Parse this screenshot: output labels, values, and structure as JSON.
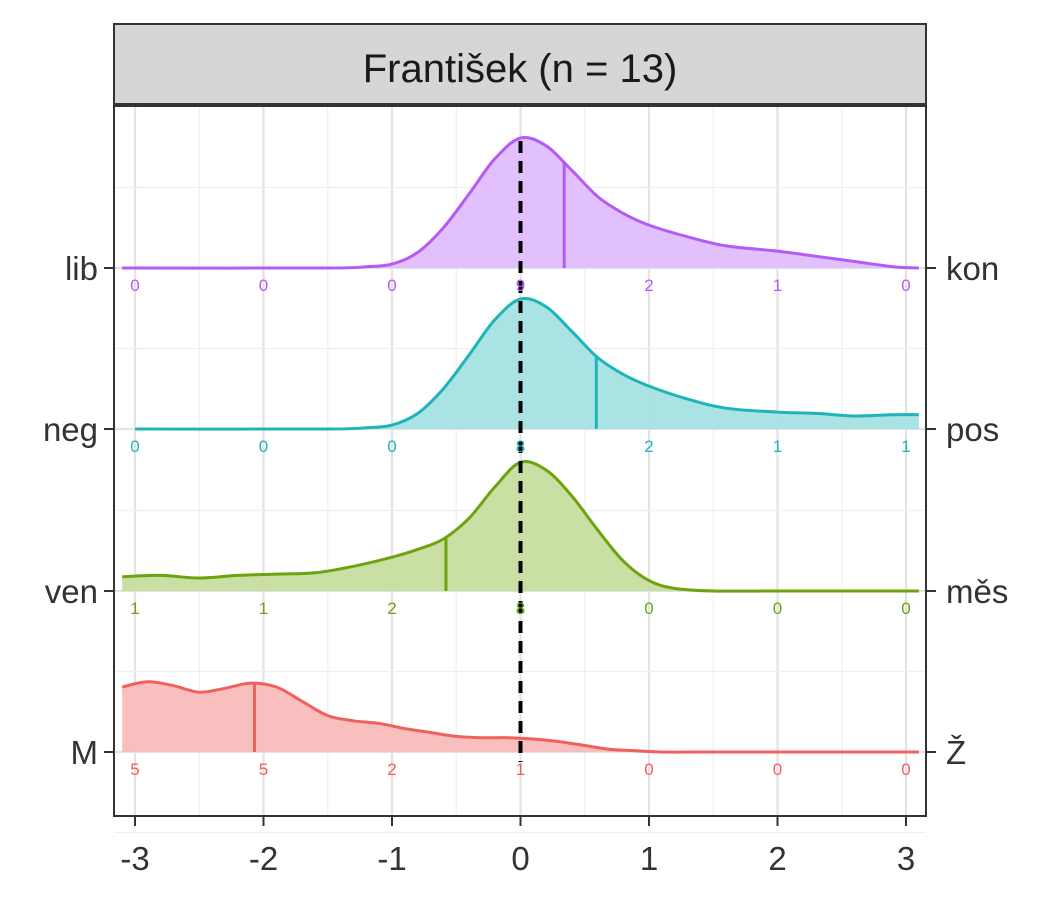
{
  "chart_data": {
    "type": "ridgeline",
    "title": "František (n = 13)",
    "x_ticks": [
      -3,
      -2,
      -1,
      0,
      1,
      2,
      3
    ],
    "xlim": [
      -3.1,
      3.1
    ],
    "reference_line_x": 0,
    "count_positions": [
      -3,
      -2,
      -1,
      0,
      1,
      2,
      3
    ],
    "grid": true,
    "rows": [
      {
        "left_label": "lib",
        "right_label": "kon",
        "color": "#b35cf5",
        "fill": "#e0bcfd",
        "counts": [
          "0",
          "0",
          "0",
          "9",
          "2",
          "1",
          "0"
        ],
        "median": 0.34,
        "density_x": [
          -3.1,
          -1.5,
          -1.2,
          -1.0,
          -0.8,
          -0.6,
          -0.4,
          -0.2,
          0.0,
          0.2,
          0.4,
          0.6,
          0.8,
          1.0,
          1.3,
          1.6,
          2.0,
          2.3,
          2.6,
          2.9,
          3.1
        ],
        "density_y": [
          0.0,
          0.0,
          0.01,
          0.03,
          0.12,
          0.31,
          0.57,
          0.84,
          1.0,
          0.94,
          0.75,
          0.55,
          0.42,
          0.33,
          0.24,
          0.17,
          0.13,
          0.09,
          0.05,
          0.01,
          0.0
        ]
      },
      {
        "left_label": "neg",
        "right_label": "pos",
        "color": "#1fb4b8",
        "fill": "#a5e2e3",
        "counts": [
          "0",
          "0",
          "0",
          "8",
          "2",
          "1",
          "1"
        ],
        "median": 0.59,
        "density_x": [
          -3.0,
          -1.5,
          -1.2,
          -1.0,
          -0.8,
          -0.6,
          -0.4,
          -0.2,
          0.0,
          0.2,
          0.4,
          0.6,
          0.8,
          1.0,
          1.3,
          1.6,
          2.0,
          2.3,
          2.6,
          2.9,
          3.1
        ],
        "density_y": [
          0.0,
          0.0,
          0.01,
          0.03,
          0.12,
          0.31,
          0.57,
          0.84,
          1.0,
          0.94,
          0.75,
          0.55,
          0.42,
          0.33,
          0.23,
          0.16,
          0.13,
          0.12,
          0.1,
          0.11,
          0.11
        ]
      },
      {
        "left_label": "ven",
        "right_label": "měs",
        "color": "#6ca30e",
        "fill": "#c7dd9f",
        "counts": [
          "1",
          "1",
          "2",
          "8",
          "0",
          "0",
          "0"
        ],
        "median": -0.58,
        "density_x": [
          -3.1,
          -2.8,
          -2.5,
          -2.2,
          -1.9,
          -1.6,
          -1.3,
          -1.0,
          -0.8,
          -0.6,
          -0.4,
          -0.2,
          0.0,
          0.2,
          0.4,
          0.6,
          0.8,
          1.0,
          1.2,
          1.5,
          2.0,
          2.5,
          3.1
        ],
        "density_y": [
          0.11,
          0.12,
          0.1,
          0.12,
          0.13,
          0.14,
          0.19,
          0.26,
          0.32,
          0.4,
          0.56,
          0.8,
          0.99,
          0.93,
          0.73,
          0.47,
          0.23,
          0.08,
          0.02,
          0.0,
          0.0,
          0.0,
          0.0
        ]
      },
      {
        "left_label": "M",
        "right_label": "Ž",
        "color": "#f0605c",
        "fill": "#f8bcbb",
        "counts": [
          "5",
          "5",
          "2",
          "1",
          "0",
          "0",
          "0"
        ],
        "median": -2.07,
        "density_x": [
          -3.1,
          -2.9,
          -2.7,
          -2.5,
          -2.3,
          -2.1,
          -1.9,
          -1.7,
          -1.5,
          -1.3,
          -1.1,
          -0.9,
          -0.7,
          -0.5,
          -0.3,
          -0.1,
          0.1,
          0.3,
          0.5,
          0.7,
          0.9,
          1.1,
          1.5,
          2.0,
          2.5,
          3.1
        ],
        "density_y": [
          0.5,
          0.54,
          0.51,
          0.46,
          0.49,
          0.53,
          0.5,
          0.39,
          0.28,
          0.24,
          0.22,
          0.18,
          0.15,
          0.12,
          0.11,
          0.11,
          0.1,
          0.08,
          0.05,
          0.02,
          0.01,
          0.0,
          0.0,
          0.0,
          0.0,
          0.0
        ]
      }
    ]
  }
}
